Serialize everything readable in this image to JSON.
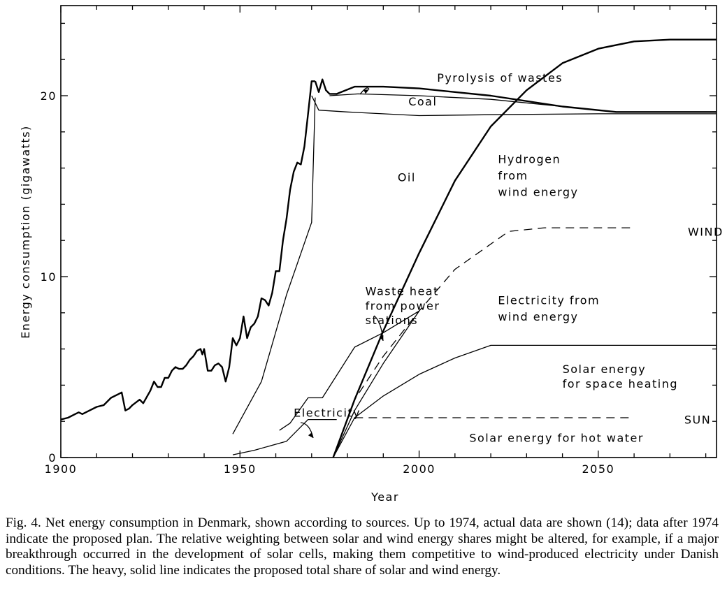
{
  "chart_data": {
    "type": "area",
    "xlabel": "Year",
    "ylabel": "Energy consumption (gigawatts)",
    "xlim": [
      1900,
      2083
    ],
    "ylim": [
      0,
      24.5
    ],
    "x_ticks": [
      1900,
      1950,
      2000,
      2050
    ],
    "y_ticks": [
      0,
      10,
      20
    ],
    "x_tick_labels": [
      "1900",
      "1950",
      "2000",
      "2050"
    ],
    "y_tick_labels": [
      "0",
      "10",
      "20"
    ],
    "series": [
      {
        "name": "Pyrolysis of wastes",
        "style": "solid-heavy",
        "points": [
          [
            1971,
            20.8
          ],
          [
            1972,
            20.2
          ],
          [
            1973,
            20.9
          ],
          [
            1974,
            20.3
          ],
          [
            1975,
            20.1
          ],
          [
            1977,
            20.1
          ],
          [
            1982,
            20.5
          ],
          [
            1990,
            20.5
          ],
          [
            2000,
            20.4
          ],
          [
            2010,
            20.2
          ],
          [
            2020,
            20.0
          ],
          [
            2040,
            19.4
          ],
          [
            2055,
            19.1
          ],
          [
            2083,
            19.1
          ]
        ]
      },
      {
        "name": "Coal",
        "style": "solid",
        "points": [
          [
            1975,
            20.0
          ],
          [
            1983,
            20.1
          ],
          [
            2000,
            20.0
          ],
          [
            2020,
            19.8
          ],
          [
            2040,
            19.4
          ],
          [
            2055,
            19.1
          ],
          [
            2083,
            19.1
          ]
        ]
      },
      {
        "name": "Oil (total consumption, actual to 1974)",
        "style": "solid-heavy",
        "points": [
          [
            1900,
            2.1
          ],
          [
            1902,
            2.2
          ],
          [
            1904,
            2.4
          ],
          [
            1905,
            2.5
          ],
          [
            1906,
            2.4
          ],
          [
            1908,
            2.6
          ],
          [
            1910,
            2.8
          ],
          [
            1912,
            2.9
          ],
          [
            1914,
            3.3
          ],
          [
            1916,
            3.5
          ],
          [
            1917,
            3.6
          ],
          [
            1918,
            2.6
          ],
          [
            1919,
            2.7
          ],
          [
            1920,
            2.9
          ],
          [
            1922,
            3.2
          ],
          [
            1923,
            3.0
          ],
          [
            1925,
            3.7
          ],
          [
            1926,
            4.2
          ],
          [
            1927,
            3.9
          ],
          [
            1928,
            3.9
          ],
          [
            1929,
            4.4
          ],
          [
            1930,
            4.4
          ],
          [
            1931,
            4.8
          ],
          [
            1932,
            5.0
          ],
          [
            1933,
            4.9
          ],
          [
            1934,
            4.9
          ],
          [
            1935,
            5.1
          ],
          [
            1936,
            5.4
          ],
          [
            1937,
            5.6
          ],
          [
            1938,
            5.9
          ],
          [
            1939,
            6.0
          ],
          [
            1939.5,
            5.7
          ],
          [
            1940,
            6.0
          ],
          [
            1941,
            4.8
          ],
          [
            1942,
            4.8
          ],
          [
            1943,
            5.1
          ],
          [
            1944,
            5.2
          ],
          [
            1945,
            5.0
          ],
          [
            1946,
            4.2
          ],
          [
            1947,
            5.0
          ],
          [
            1948,
            6.6
          ],
          [
            1949,
            6.2
          ],
          [
            1950,
            6.6
          ],
          [
            1951,
            7.8
          ],
          [
            1952,
            6.6
          ],
          [
            1953,
            7.2
          ],
          [
            1954,
            7.4
          ],
          [
            1955,
            7.8
          ],
          [
            1956,
            8.8
          ],
          [
            1957,
            8.7
          ],
          [
            1958,
            8.4
          ],
          [
            1959,
            9.1
          ],
          [
            1960,
            10.3
          ],
          [
            1961,
            10.3
          ],
          [
            1962,
            12.0
          ],
          [
            1963,
            13.2
          ],
          [
            1964,
            14.8
          ],
          [
            1965,
            15.8
          ],
          [
            1966,
            16.3
          ],
          [
            1967,
            16.2
          ],
          [
            1968,
            17.2
          ],
          [
            1969,
            19.0
          ],
          [
            1970,
            20.8
          ],
          [
            1971,
            20.8
          ]
        ]
      },
      {
        "name": "Oil (lower boundary)",
        "style": "solid",
        "points": [
          [
            1970,
            20.0
          ],
          [
            1972,
            19.2
          ],
          [
            1980,
            19.1
          ],
          [
            2000,
            18.9
          ],
          [
            2020,
            18.95
          ],
          [
            2050,
            19.0
          ],
          [
            2083,
            19.0
          ]
        ]
      },
      {
        "name": "Hydrogen from wind energy",
        "style": "solid-heavy",
        "points": [
          [
            1976,
            0
          ],
          [
            1982,
            3.2
          ],
          [
            1990,
            7.0
          ],
          [
            2000,
            11.3
          ],
          [
            2010,
            15.3
          ],
          [
            2020,
            18.3
          ],
          [
            2030,
            20.3
          ],
          [
            2040,
            21.8
          ],
          [
            2050,
            22.6
          ],
          [
            2060,
            23.0
          ],
          [
            2070,
            23.1
          ],
          [
            2083,
            23.1
          ]
        ]
      },
      {
        "name": "WIND",
        "style": "dashed",
        "points": [
          [
            1976,
            0
          ],
          [
            1982,
            3.2
          ],
          [
            1990,
            5.6
          ],
          [
            2000,
            8.1
          ],
          [
            2010,
            10.4
          ],
          [
            2025,
            12.5
          ],
          [
            2035,
            12.7
          ],
          [
            2060,
            12.7
          ]
        ]
      },
      {
        "name": "Electricity from wind energy",
        "style": "solid",
        "points": [
          [
            1976,
            0
          ],
          [
            1982,
            2.6
          ],
          [
            1990,
            5.2
          ],
          [
            2000,
            8.1
          ]
        ]
      },
      {
        "name": "Waste heat from power stations",
        "style": "solid",
        "points": [
          [
            1961,
            1.5
          ],
          [
            1964,
            1.9
          ],
          [
            1969,
            3.3
          ],
          [
            1973,
            3.3
          ],
          [
            1982,
            6.1
          ],
          [
            1990,
            6.9
          ],
          [
            2000,
            8.1
          ]
        ]
      },
      {
        "name": "Electricity",
        "style": "solid",
        "points": [
          [
            1948,
            0.15
          ],
          [
            1954,
            0.4
          ],
          [
            1963,
            0.9
          ],
          [
            1969,
            2.1
          ],
          [
            1973,
            2.1
          ],
          [
            1977,
            2.1
          ]
        ]
      },
      {
        "name": "Electricity (upper boundary)",
        "style": "solid",
        "points": [
          [
            1948,
            1.3
          ],
          [
            1956,
            4.2
          ],
          [
            1963,
            9.0
          ],
          [
            1970,
            13.0
          ],
          [
            1971,
            19.9
          ]
        ]
      },
      {
        "name": "Solar energy for space heating",
        "style": "solid",
        "points": [
          [
            1976,
            0
          ],
          [
            1982,
            2.2
          ],
          [
            1990,
            3.4
          ],
          [
            2000,
            4.6
          ],
          [
            2010,
            5.5
          ],
          [
            2020,
            6.2
          ],
          [
            2083,
            6.2
          ]
        ]
      },
      {
        "name": "SUN",
        "style": "dashed",
        "points": [
          [
            1982,
            2.2
          ],
          [
            2060,
            2.2
          ]
        ]
      }
    ],
    "annotations": [
      {
        "text": "Pyrolysis of wastes",
        "x": 2005,
        "y": 21.0
      },
      {
        "text": "Coal",
        "x": 1997,
        "y": 19.7
      },
      {
        "text": "Oil",
        "x": 1994,
        "y": 15.5
      },
      {
        "text": "Hydrogen",
        "x": 2022,
        "y": 16.5
      },
      {
        "text": "from",
        "x": 2022,
        "y": 15.6
      },
      {
        "text": "wind energy",
        "x": 2022,
        "y": 14.7
      },
      {
        "text": "WIND",
        "x": 2075,
        "y": 12.5
      },
      {
        "text": "Waste heat",
        "x": 1985,
        "y": 9.2
      },
      {
        "text": "from power",
        "x": 1985,
        "y": 8.4
      },
      {
        "text": "stations",
        "x": 1985,
        "y": 7.6
      },
      {
        "text": "Electricity from",
        "x": 2022,
        "y": 8.7
      },
      {
        "text": "wind energy",
        "x": 2022,
        "y": 7.8
      },
      {
        "text": "Solar energy",
        "x": 2040,
        "y": 4.9
      },
      {
        "text": "for space heating",
        "x": 2040,
        "y": 4.1
      },
      {
        "text": "Electricity",
        "x": 1965,
        "y": 2.5
      },
      {
        "text": "SUN",
        "x": 2074,
        "y": 2.1
      },
      {
        "text": "Solar energy for hot water",
        "x": 2014,
        "y": 1.1
      }
    ],
    "grid": false,
    "legend": "none"
  },
  "caption": "Fig. 4. Net energy consumption in Denmark, shown according to sources. Up to 1974, actual data are shown (14); data after 1974 indicate the proposed plan. The relative weighting between solar and wind energy shares might be altered, for example, if a major breakthrough occurred in the development of solar cells, making them competitive to wind-produced electricity under Danish conditions. The heavy, solid line indicates the proposed total share of solar and wind energy."
}
